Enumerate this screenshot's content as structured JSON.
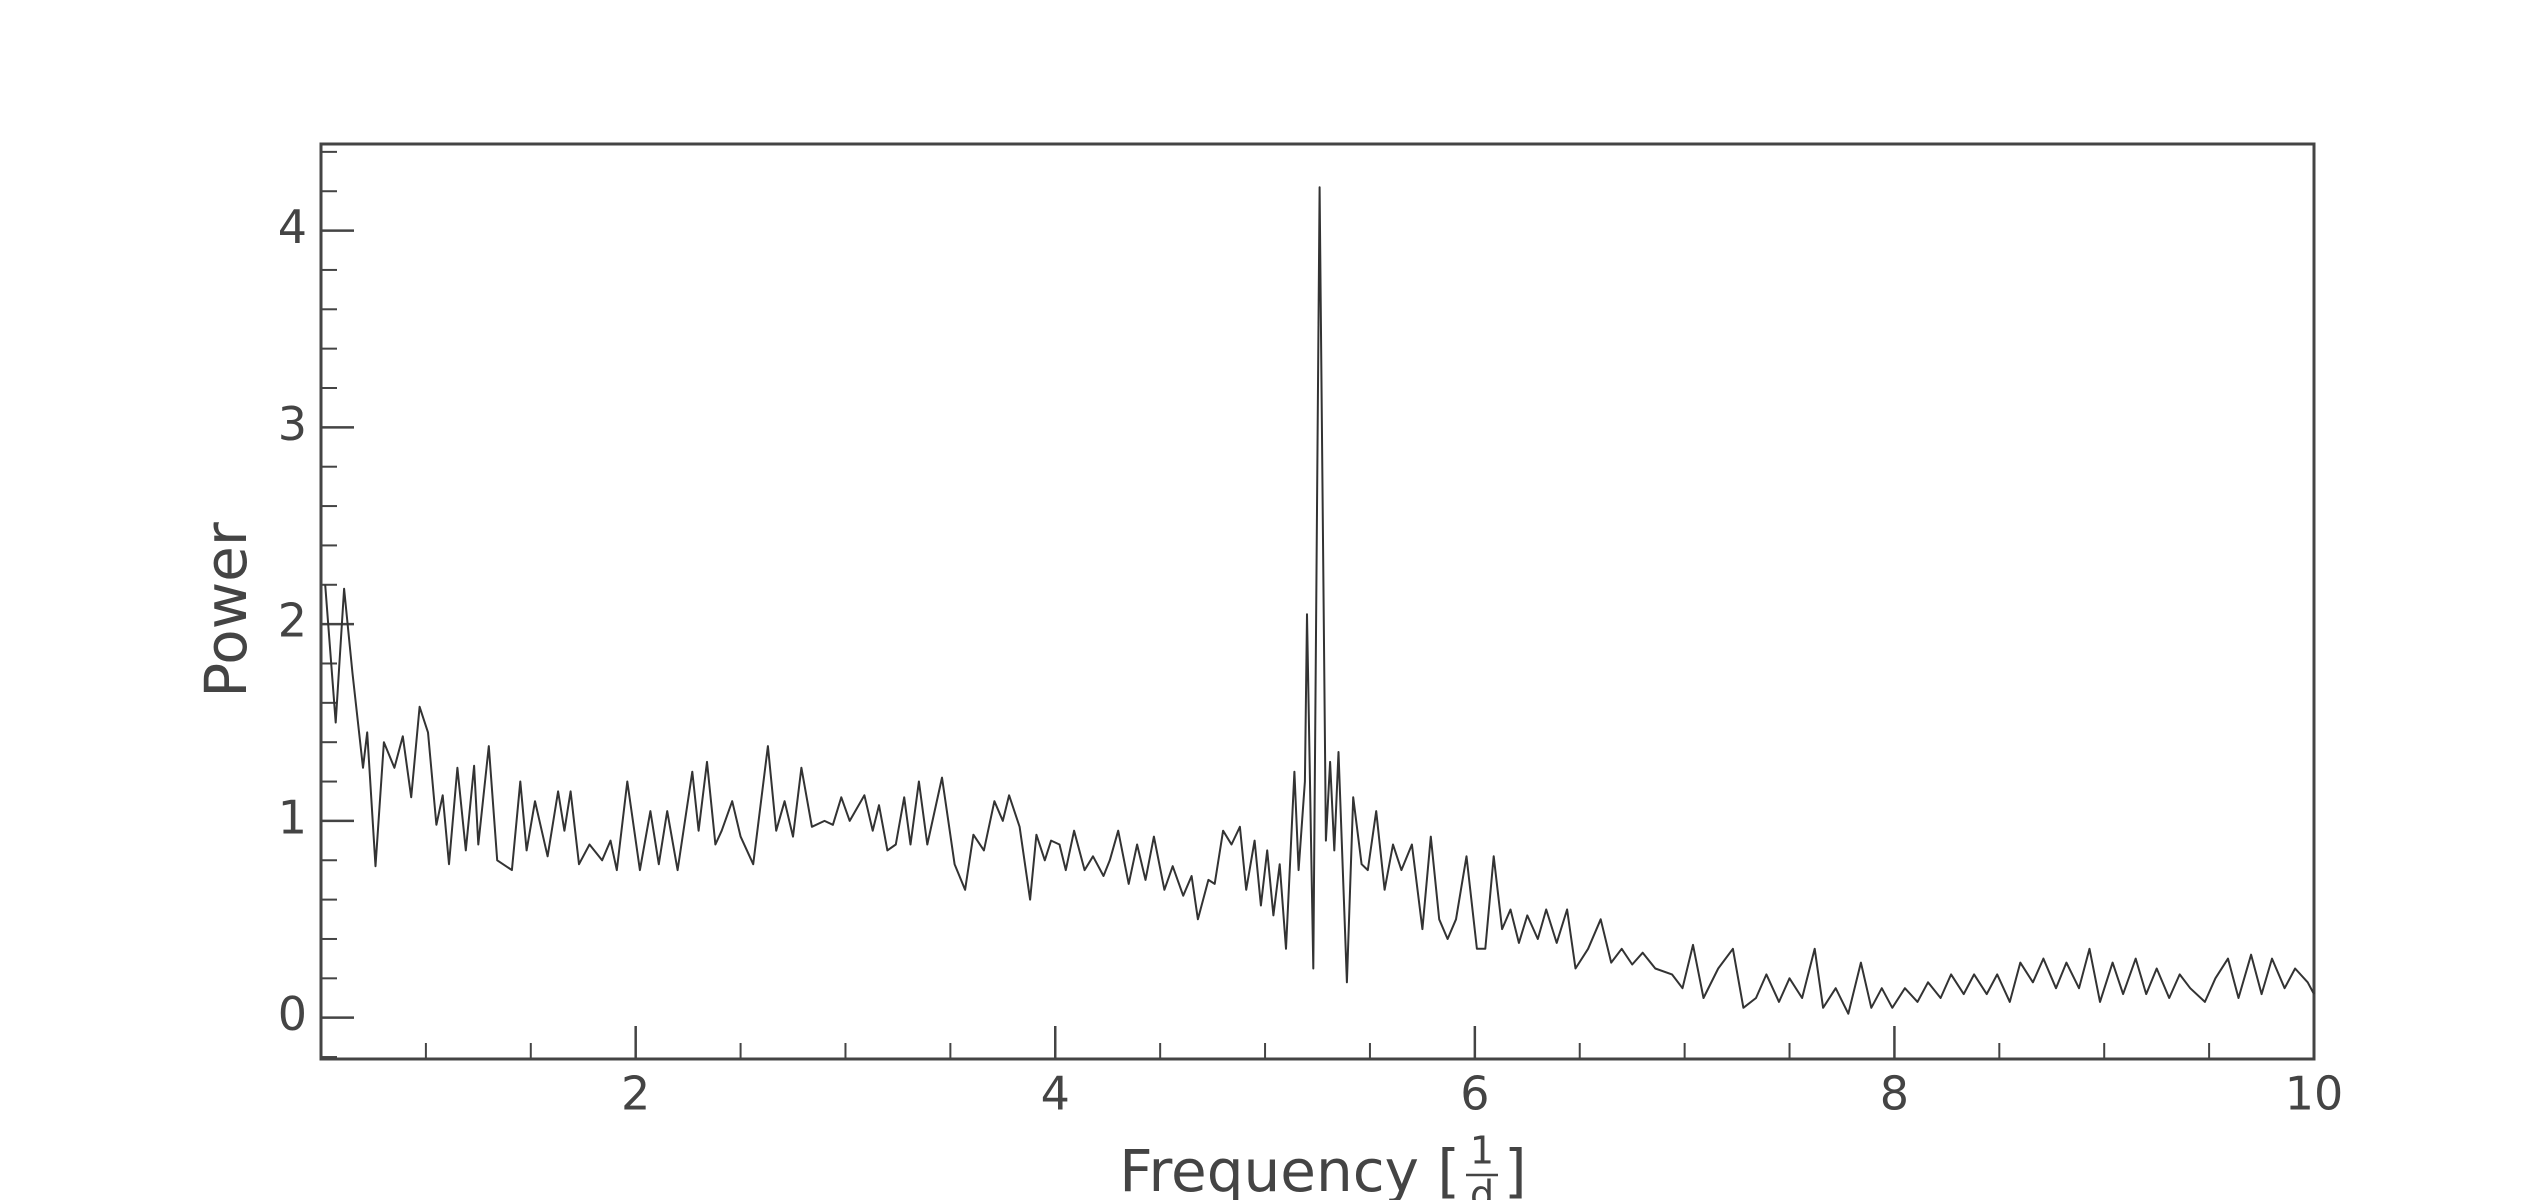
{
  "chart_data": {
    "type": "line",
    "ylabel": "Power",
    "xlabel_prefix": "Frequency [",
    "xlabel_numerator": "1",
    "xlabel_denominator": "d",
    "xlabel_suffix": "]",
    "xlim": [
      0.5,
      10
    ],
    "ylim": [
      -0.21,
      4.44
    ],
    "xticks": [
      2,
      4,
      6,
      8,
      10
    ],
    "yticks": [
      0,
      1,
      2,
      3,
      4
    ],
    "xticks_minor": [
      1,
      1.5,
      2.5,
      3,
      3.5,
      4.5,
      5,
      5.5,
      6.5,
      7,
      7.5,
      8.5,
      9,
      9.5
    ],
    "yticks_minor": [
      -0.2,
      0.2,
      0.4,
      0.6,
      0.8,
      1.2,
      1.4,
      1.6,
      1.8,
      2.2,
      2.4,
      2.6,
      2.8,
      3.2,
      3.4,
      3.6,
      3.8,
      4.2,
      4.4
    ],
    "x": [
      0.52,
      0.57,
      0.61,
      0.65,
      0.7,
      0.72,
      0.76,
      0.8,
      0.85,
      0.89,
      0.93,
      0.97,
      1.01,
      1.05,
      1.08,
      1.11,
      1.15,
      1.19,
      1.23,
      1.25,
      1.3,
      1.34,
      1.41,
      1.45,
      1.48,
      1.52,
      1.58,
      1.63,
      1.66,
      1.69,
      1.73,
      1.78,
      1.84,
      1.88,
      1.91,
      1.96,
      2.02,
      2.07,
      2.11,
      2.15,
      2.2,
      2.27,
      2.3,
      2.34,
      2.38,
      2.41,
      2.46,
      2.5,
      2.56,
      2.63,
      2.67,
      2.71,
      2.75,
      2.79,
      2.84,
      2.9,
      2.94,
      2.98,
      3.02,
      3.09,
      3.13,
      3.16,
      3.2,
      3.24,
      3.28,
      3.31,
      3.35,
      3.39,
      3.46,
      3.52,
      3.57,
      3.61,
      3.66,
      3.71,
      3.75,
      3.78,
      3.83,
      3.88,
      3.91,
      3.95,
      3.98,
      4.02,
      4.05,
      4.09,
      4.14,
      4.18,
      4.23,
      4.26,
      4.3,
      4.35,
      4.39,
      4.43,
      4.47,
      4.52,
      4.56,
      4.61,
      4.65,
      4.68,
      4.73,
      4.76,
      4.8,
      4.84,
      4.88,
      4.91,
      4.95,
      4.98,
      5.01,
      5.04,
      5.07,
      5.1,
      5.14,
      5.16,
      5.19,
      5.2,
      5.23,
      5.26,
      5.29,
      5.31,
      5.33,
      5.35,
      5.39,
      5.42,
      5.46,
      5.49,
      5.53,
      5.57,
      5.61,
      5.65,
      5.7,
      5.75,
      5.79,
      5.83,
      5.87,
      5.91,
      5.96,
      6.01,
      6.05,
      6.09,
      6.13,
      6.17,
      6.21,
      6.25,
      6.3,
      6.34,
      6.39,
      6.44,
      6.48,
      6.54,
      6.6,
      6.65,
      6.7,
      6.75,
      6.8,
      6.86,
      6.94,
      6.99,
      7.04,
      7.09,
      7.16,
      7.23,
      7.28,
      7.34,
      7.39,
      7.45,
      7.5,
      7.56,
      7.62,
      7.66,
      7.72,
      7.78,
      7.84,
      7.89,
      7.94,
      7.99,
      8.05,
      8.11,
      8.16,
      8.22,
      8.27,
      8.33,
      8.38,
      8.44,
      8.49,
      8.55,
      8.6,
      8.66,
      8.71,
      8.77,
      8.82,
      8.88,
      8.93,
      8.98,
      9.04,
      9.09,
      9.15,
      9.2,
      9.25,
      9.31,
      9.36,
      9.41,
      9.48,
      9.53,
      9.59,
      9.64,
      9.7,
      9.75,
      9.8,
      9.86,
      9.91,
      9.97,
      10.0
    ],
    "series": [
      {
        "color": "#333333",
        "values": [
          2.2,
          1.5,
          2.18,
          1.75,
          1.27,
          1.45,
          0.77,
          1.4,
          1.27,
          1.43,
          1.12,
          1.58,
          1.45,
          0.98,
          1.13,
          0.78,
          1.27,
          0.85,
          1.28,
          0.88,
          1.38,
          0.8,
          0.75,
          1.2,
          0.85,
          1.1,
          0.82,
          1.15,
          0.95,
          1.15,
          0.78,
          0.88,
          0.8,
          0.9,
          0.75,
          1.2,
          0.75,
          1.05,
          0.78,
          1.05,
          0.75,
          1.25,
          0.95,
          1.3,
          0.88,
          0.95,
          1.1,
          0.92,
          0.78,
          1.38,
          0.95,
          1.1,
          0.92,
          1.27,
          0.97,
          1.0,
          0.98,
          1.12,
          1.0,
          1.13,
          0.95,
          1.08,
          0.85,
          0.88,
          1.12,
          0.88,
          1.2,
          0.88,
          1.22,
          0.78,
          0.65,
          0.93,
          0.85,
          1.1,
          1.0,
          1.13,
          0.97,
          0.6,
          0.93,
          0.8,
          0.9,
          0.88,
          0.75,
          0.95,
          0.75,
          0.82,
          0.72,
          0.8,
          0.95,
          0.68,
          0.88,
          0.7,
          0.92,
          0.65,
          0.77,
          0.62,
          0.72,
          0.5,
          0.7,
          0.68,
          0.95,
          0.88,
          0.97,
          0.65,
          0.9,
          0.57,
          0.85,
          0.52,
          0.78,
          0.35,
          1.25,
          0.75,
          1.2,
          2.05,
          0.25,
          4.22,
          0.9,
          1.3,
          0.85,
          1.35,
          0.18,
          1.12,
          0.78,
          0.75,
          1.05,
          0.65,
          0.88,
          0.75,
          0.88,
          0.45,
          0.92,
          0.5,
          0.4,
          0.5,
          0.82,
          0.35,
          0.35,
          0.82,
          0.45,
          0.55,
          0.38,
          0.52,
          0.4,
          0.55,
          0.38,
          0.55,
          0.25,
          0.35,
          0.5,
          0.28,
          0.35,
          0.27,
          0.33,
          0.25,
          0.22,
          0.15,
          0.37,
          0.1,
          0.25,
          0.35,
          0.05,
          0.1,
          0.22,
          0.08,
          0.2,
          0.1,
          0.35,
          0.05,
          0.15,
          0.02,
          0.28,
          0.05,
          0.15,
          0.05,
          0.15,
          0.08,
          0.18,
          0.1,
          0.22,
          0.12,
          0.22,
          0.12,
          0.22,
          0.08,
          0.28,
          0.18,
          0.3,
          0.15,
          0.28,
          0.15,
          0.35,
          0.08,
          0.28,
          0.12,
          0.3,
          0.12,
          0.25,
          0.1,
          0.22,
          0.15,
          0.08,
          0.2,
          0.3,
          0.1,
          0.32,
          0.12,
          0.3,
          0.15,
          0.25,
          0.18,
          0.12
        ]
      }
    ]
  }
}
